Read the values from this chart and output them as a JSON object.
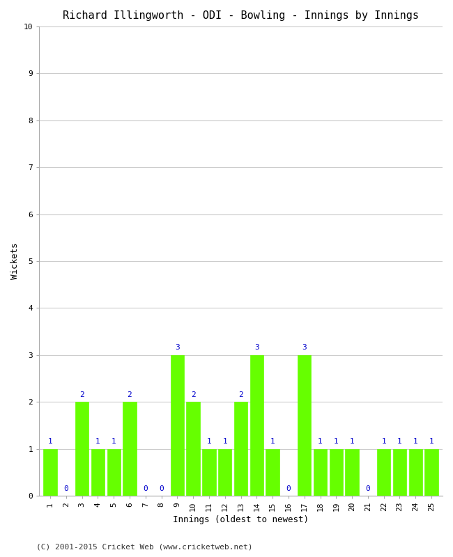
{
  "title": "Richard Illingworth - ODI - Bowling - Innings by Innings",
  "xlabel": "Innings (oldest to newest)",
  "ylabel": "Wickets",
  "innings": [
    1,
    2,
    3,
    4,
    5,
    6,
    7,
    8,
    9,
    10,
    11,
    12,
    13,
    14,
    15,
    16,
    17,
    18,
    19,
    20,
    21,
    22,
    23,
    24,
    25
  ],
  "wickets": [
    1,
    0,
    2,
    1,
    1,
    2,
    0,
    0,
    3,
    2,
    1,
    1,
    2,
    3,
    1,
    0,
    3,
    1,
    1,
    1,
    0,
    1,
    1,
    1,
    1
  ],
  "bar_color": "#66ff00",
  "bar_edge_color": "#66ff00",
  "label_color": "#0000cc",
  "background_color": "#ffffff",
  "grid_color": "#cccccc",
  "spine_color": "#aaaaaa",
  "ylim": [
    0,
    10
  ],
  "yticks": [
    0,
    1,
    2,
    3,
    4,
    5,
    6,
    7,
    8,
    9,
    10
  ],
  "title_fontsize": 11,
  "axis_label_fontsize": 9,
  "tick_fontsize": 8,
  "label_fontsize": 8,
  "footer": "(C) 2001-2015 Cricket Web (www.cricketweb.net)",
  "footer_fontsize": 8,
  "bar_width": 0.85
}
